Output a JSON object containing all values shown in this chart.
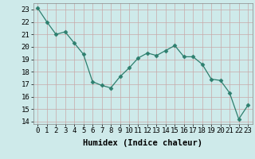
{
  "x": [
    0,
    1,
    2,
    3,
    4,
    5,
    6,
    7,
    8,
    9,
    10,
    11,
    12,
    13,
    14,
    15,
    16,
    17,
    18,
    19,
    20,
    21,
    22,
    23
  ],
  "y": [
    23.1,
    22.0,
    21.0,
    21.2,
    20.3,
    19.4,
    17.2,
    16.9,
    16.7,
    17.6,
    18.3,
    19.1,
    19.5,
    19.3,
    19.7,
    20.1,
    19.2,
    19.2,
    18.6,
    17.4,
    17.3,
    16.3,
    14.2,
    15.3
  ],
  "line_color": "#2d7f6e",
  "marker": "D",
  "marker_size": 2.5,
  "bg_color": "#ceeaea",
  "grid_color_major": "#c8a8a8",
  "xlabel": "Humidex (Indice chaleur)",
  "ylim": [
    13.8,
    23.5
  ],
  "xlim": [
    -0.5,
    23.5
  ],
  "yticks": [
    14,
    15,
    16,
    17,
    18,
    19,
    20,
    21,
    22,
    23
  ],
  "xticks": [
    0,
    1,
    2,
    3,
    4,
    5,
    6,
    7,
    8,
    9,
    10,
    11,
    12,
    13,
    14,
    15,
    16,
    17,
    18,
    19,
    20,
    21,
    22,
    23
  ],
  "tick_fontsize": 6.5,
  "label_fontsize": 7.5
}
